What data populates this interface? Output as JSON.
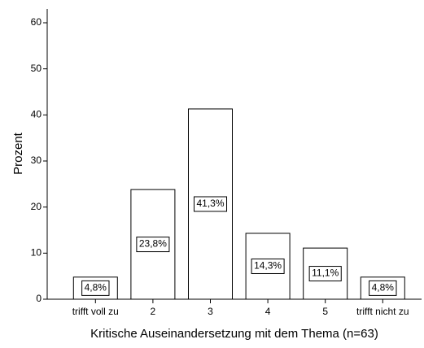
{
  "chart_data": {
    "type": "bar",
    "x_label": "Kritische Auseinandersetzung mit dem Thema (n=63)",
    "y_label": "Prozent",
    "categories": [
      "trifft voll zu",
      "2",
      "3",
      "4",
      "5",
      "trifft nicht zu"
    ],
    "values": [
      4.8,
      23.8,
      41.3,
      14.3,
      11.1,
      4.8
    ],
    "value_labels": [
      "4,8%",
      "23,8%",
      "41,3%",
      "14,3%",
      "11,1%",
      "4,8%"
    ],
    "color": "#ffffff",
    "ylim": [
      0,
      63
    ],
    "yticks": [
      0,
      10,
      20,
      30,
      40,
      50,
      60
    ],
    "grid": false
  }
}
